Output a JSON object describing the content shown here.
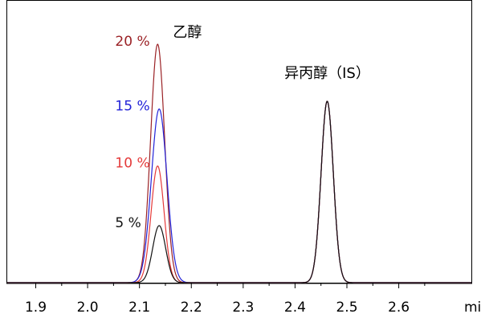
{
  "chart_data": {
    "type": "line",
    "title": "",
    "xlabel": "",
    "ylabel": "",
    "x_unit": "min",
    "xlim": [
      1.845,
      2.74
    ],
    "ylim": [
      0,
      100
    ],
    "x_ticks": [
      "1.9",
      "2.0",
      "2.1",
      "2.2",
      "2.3",
      "2.4",
      "2.5",
      "2.6"
    ],
    "grid": false,
    "legend": "none",
    "peak_labels": [
      {
        "text": "乙醇",
        "x": 2.16,
        "y": 96
      },
      {
        "text": "异丙醇（IS）",
        "x": 2.462,
        "y": 78
      }
    ],
    "series": [
      {
        "name": "20 %",
        "color": "#9b2226",
        "peaks": [
          {
            "center": 2.135,
            "height": 92,
            "sigma": 0.0135
          },
          {
            "center": 2.462,
            "height": 70,
            "sigma": 0.0118
          }
        ]
      },
      {
        "name": "15 %",
        "color": "#2323d8",
        "peaks": [
          {
            "center": 2.138,
            "height": 67,
            "sigma": 0.015
          },
          {
            "center": 2.462,
            "height": 70,
            "sigma": 0.0118
          }
        ]
      },
      {
        "name": "10 %",
        "color": "#e43a3a",
        "peaks": [
          {
            "center": 2.135,
            "height": 45,
            "sigma": 0.0125
          },
          {
            "center": 2.462,
            "height": 70,
            "sigma": 0.0118
          }
        ]
      },
      {
        "name": "5 %",
        "color": "#111111",
        "peaks": [
          {
            "center": 2.138,
            "height": 22,
            "sigma": 0.0125
          },
          {
            "center": 2.462,
            "height": 70,
            "sigma": 0.0118
          }
        ]
      }
    ],
    "series_label_positions": [
      {
        "series": 0,
        "x": 2.112,
        "y": 92
      },
      {
        "series": 1,
        "x": 2.112,
        "y": 67
      },
      {
        "series": 2,
        "x": 2.112,
        "y": 45
      },
      {
        "series": 3,
        "x": 2.112,
        "y": 22
      }
    ]
  }
}
